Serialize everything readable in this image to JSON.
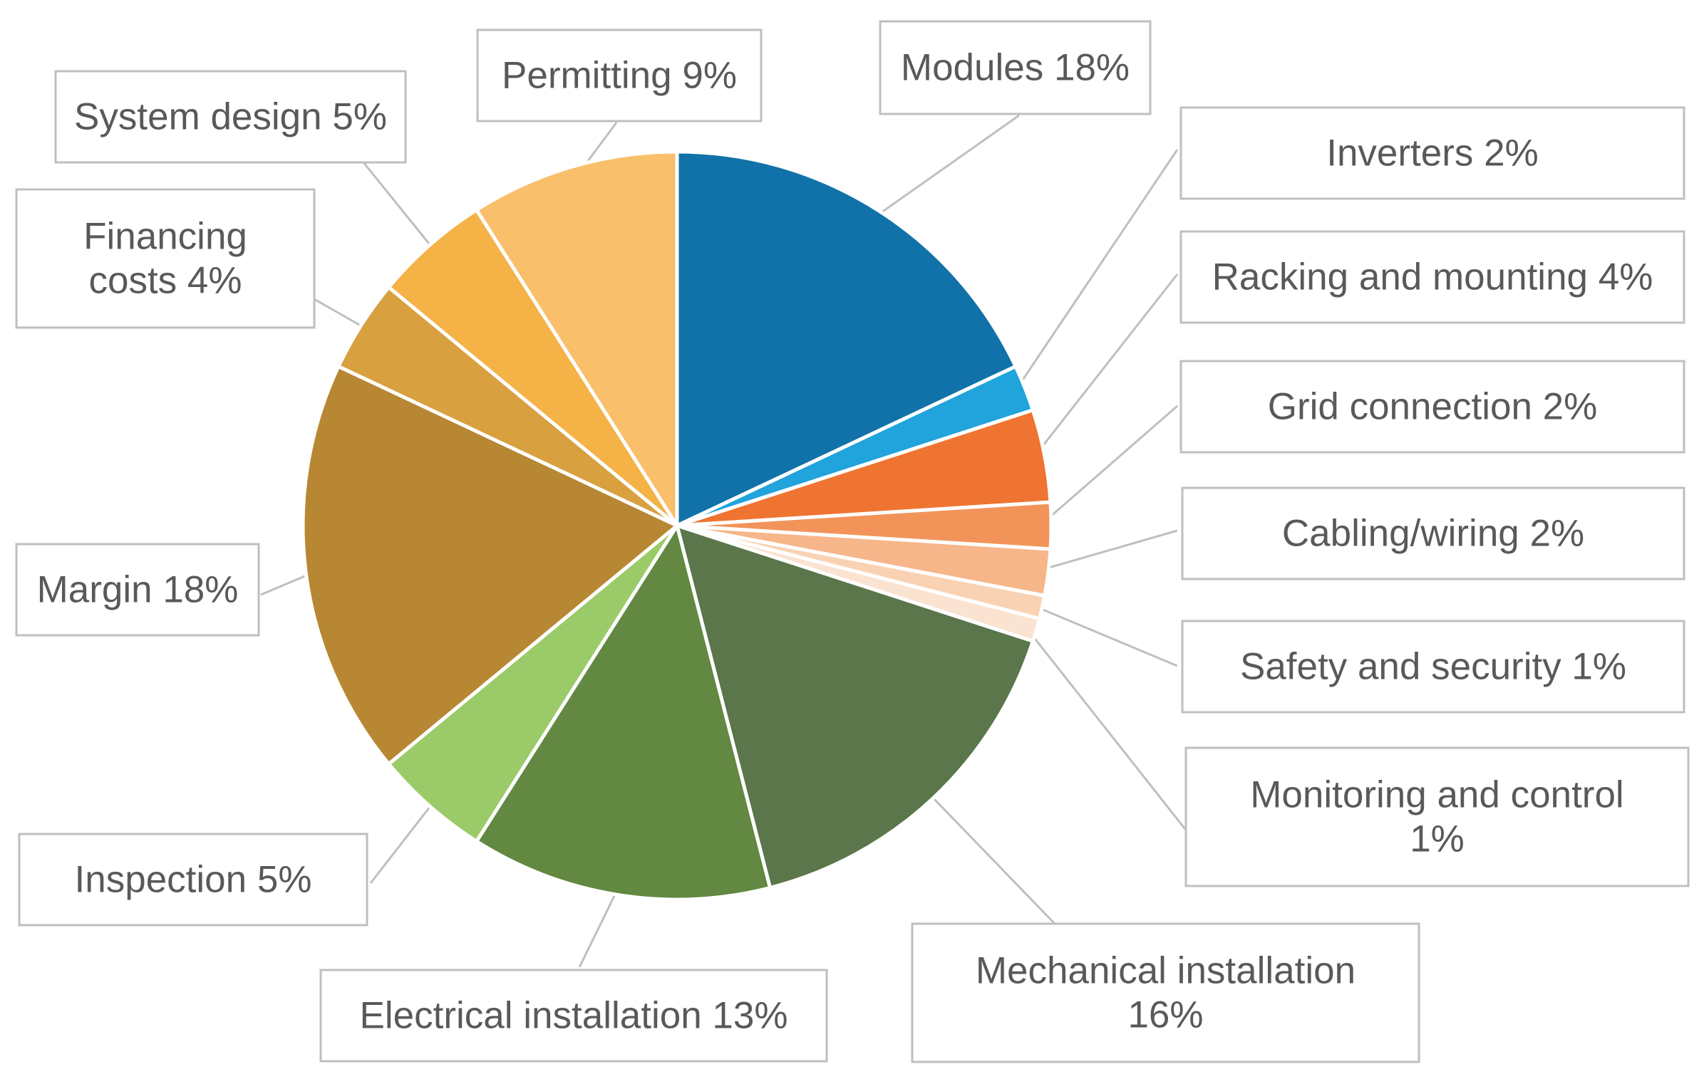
{
  "chart_data": {
    "type": "pie",
    "title": "",
    "labels": [
      "Modules 18%",
      "Inverters 2%",
      "Racking and mounting 4%",
      "Grid connection 2%",
      "Cabling/wiring 2%",
      "Safety and security 1%",
      "Monitoring and control 1%",
      "Mechanical installation 16%",
      "Electrical installation 13%",
      "Inspection 5%",
      "Margin 18%",
      "Financing costs 4%",
      "System design 5%",
      "Permitting 9%"
    ],
    "display_lines": [
      [
        "Modules 18%"
      ],
      [
        "Inverters 2%"
      ],
      [
        "Racking and mounting 4%"
      ],
      [
        "Grid connection 2%"
      ],
      [
        "Cabling/wiring 2%"
      ],
      [
        "Safety and security 1%"
      ],
      [
        "Monitoring and control",
        "1%"
      ],
      [
        "Mechanical installation",
        "16%"
      ],
      [
        "Electrical installation 13%"
      ],
      [
        "Inspection 5%"
      ],
      [
        "Margin 18%"
      ],
      [
        "Financing",
        "costs 4%"
      ],
      [
        "System design 5%"
      ],
      [
        "Permitting 9%"
      ]
    ],
    "values": [
      18,
      2,
      4,
      2,
      2,
      1,
      1,
      16,
      13,
      5,
      18,
      4,
      5,
      9
    ],
    "colors": [
      "#1072a8",
      "#21a3dc",
      "#ef7431",
      "#f2945a",
      "#f6b689",
      "#f9d2b3",
      "#fbe3d1",
      "#5a764a",
      "#628841",
      "#9bcb69",
      "#b88733",
      "#d8a03f",
      "#f4b247",
      "#f9bf6a"
    ],
    "start_angle_deg": 0,
    "direction": "clockwise",
    "legend": "none",
    "data_labels": "callout boxes with leader lines"
  }
}
